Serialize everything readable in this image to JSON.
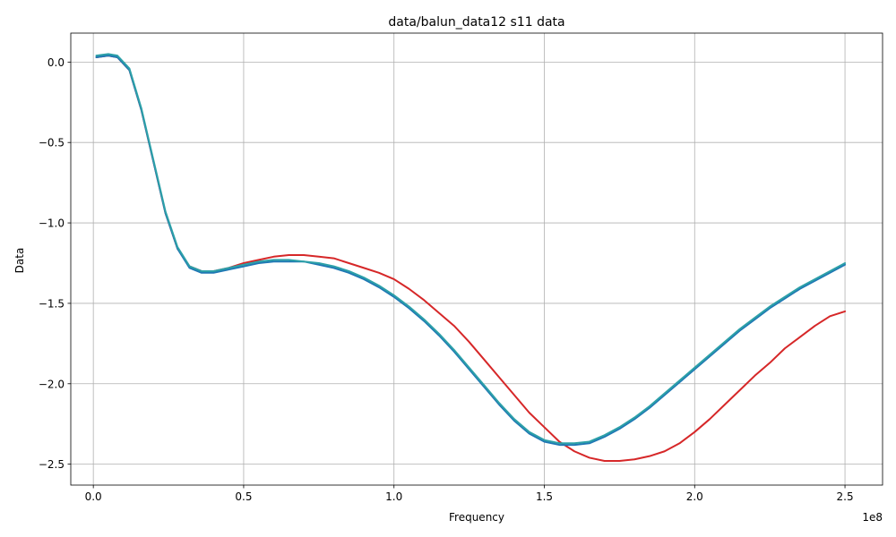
{
  "chart_data": {
    "type": "line",
    "title": "data/balun_data12 s11 data",
    "xlabel": "Frequency",
    "ylabel": "Data",
    "x_offset_label": "1e8",
    "xlim": [
      -0.075,
      2.625
    ],
    "ylim": [
      -2.63,
      0.18
    ],
    "x_ticks": [
      0.0,
      0.5,
      1.0,
      1.5,
      2.0,
      2.5
    ],
    "x_tick_labels": [
      "0.0",
      "0.5",
      "1.0",
      "1.5",
      "2.0",
      "2.5"
    ],
    "y_ticks": [
      0.0,
      -0.5,
      -1.0,
      -1.5,
      -2.0,
      -2.5
    ],
    "y_tick_labels": [
      "0.0",
      "−0.5",
      "−1.0",
      "−1.5",
      "−2.0",
      "−2.5"
    ],
    "grid": true,
    "series": [
      {
        "color": "#d62728",
        "x": [
          0.01,
          0.05,
          0.08,
          0.12,
          0.16,
          0.2,
          0.24,
          0.28,
          0.32,
          0.36,
          0.4,
          0.45,
          0.5,
          0.55,
          0.6,
          0.65,
          0.7,
          0.75,
          0.8,
          0.85,
          0.9,
          0.95,
          1.0,
          1.05,
          1.1,
          1.15,
          1.2,
          1.25,
          1.3,
          1.35,
          1.4,
          1.45,
          1.5,
          1.55,
          1.6,
          1.65,
          1.7,
          1.75,
          1.8,
          1.85,
          1.9,
          1.95,
          2.0,
          2.05,
          2.1,
          2.15,
          2.2,
          2.25,
          2.3,
          2.35,
          2.4,
          2.45,
          2.5
        ],
        "y": [
          0.03,
          0.04,
          0.03,
          -0.05,
          -0.3,
          -0.62,
          -0.94,
          -1.16,
          -1.27,
          -1.3,
          -1.3,
          -1.28,
          -1.25,
          -1.23,
          -1.21,
          -1.2,
          -1.2,
          -1.21,
          -1.22,
          -1.25,
          -1.28,
          -1.31,
          -1.35,
          -1.41,
          -1.48,
          -1.56,
          -1.64,
          -1.74,
          -1.85,
          -1.96,
          -2.07,
          -2.18,
          -2.27,
          -2.36,
          -2.42,
          -2.46,
          -2.48,
          -2.48,
          -2.47,
          -2.45,
          -2.42,
          -2.37,
          -2.3,
          -2.22,
          -2.13,
          -2.04,
          -1.95,
          -1.87,
          -1.78,
          -1.71,
          -1.64,
          -1.58,
          -1.55
        ]
      },
      {
        "color": "#1f77b4",
        "x": [
          0.01,
          0.05,
          0.08,
          0.12,
          0.16,
          0.2,
          0.24,
          0.28,
          0.32,
          0.36,
          0.4,
          0.45,
          0.5,
          0.55,
          0.6,
          0.65,
          0.7,
          0.75,
          0.8,
          0.85,
          0.9,
          0.95,
          1.0,
          1.05,
          1.1,
          1.15,
          1.2,
          1.25,
          1.3,
          1.35,
          1.4,
          1.45,
          1.5,
          1.55,
          1.6,
          1.65,
          1.7,
          1.75,
          1.8,
          1.85,
          1.9,
          1.95,
          2.0,
          2.05,
          2.1,
          2.15,
          2.2,
          2.25,
          2.3,
          2.35,
          2.4,
          2.45,
          2.5
        ],
        "y": [
          0.03,
          0.04,
          0.03,
          -0.05,
          -0.3,
          -0.62,
          -0.94,
          -1.16,
          -1.28,
          -1.31,
          -1.31,
          -1.29,
          -1.27,
          -1.25,
          -1.24,
          -1.24,
          -1.24,
          -1.26,
          -1.28,
          -1.31,
          -1.35,
          -1.4,
          -1.46,
          -1.53,
          -1.61,
          -1.7,
          -1.8,
          -1.91,
          -2.02,
          -2.13,
          -2.23,
          -2.31,
          -2.36,
          -2.38,
          -2.38,
          -2.37,
          -2.33,
          -2.28,
          -2.22,
          -2.15,
          -2.07,
          -1.99,
          -1.91,
          -1.83,
          -1.75,
          -1.67,
          -1.6,
          -1.53,
          -1.47,
          -1.41,
          -1.36,
          -1.31,
          -1.26
        ]
      },
      {
        "color": "#2ca0a8",
        "x": [
          0.01,
          0.05,
          0.08,
          0.12,
          0.16,
          0.2,
          0.24,
          0.28,
          0.32,
          0.36,
          0.4,
          0.45,
          0.5,
          0.55,
          0.6,
          0.65,
          0.7,
          0.75,
          0.8,
          0.85,
          0.9,
          0.95,
          1.0,
          1.05,
          1.1,
          1.15,
          1.2,
          1.25,
          1.3,
          1.35,
          1.4,
          1.45,
          1.5,
          1.55,
          1.6,
          1.65,
          1.7,
          1.75,
          1.8,
          1.85,
          1.9,
          1.95,
          2.0,
          2.05,
          2.1,
          2.15,
          2.2,
          2.25,
          2.3,
          2.35,
          2.4,
          2.45,
          2.5
        ],
        "y": [
          0.04,
          0.05,
          0.04,
          -0.04,
          -0.29,
          -0.61,
          -0.93,
          -1.15,
          -1.27,
          -1.3,
          -1.3,
          -1.28,
          -1.26,
          -1.24,
          -1.23,
          -1.23,
          -1.24,
          -1.25,
          -1.27,
          -1.3,
          -1.34,
          -1.39,
          -1.45,
          -1.52,
          -1.6,
          -1.69,
          -1.79,
          -1.9,
          -2.01,
          -2.12,
          -2.22,
          -2.3,
          -2.35,
          -2.37,
          -2.37,
          -2.36,
          -2.32,
          -2.27,
          -2.21,
          -2.14,
          -2.06,
          -1.98,
          -1.9,
          -1.82,
          -1.74,
          -1.66,
          -1.59,
          -1.52,
          -1.46,
          -1.4,
          -1.35,
          -1.3,
          -1.25
        ]
      }
    ]
  }
}
